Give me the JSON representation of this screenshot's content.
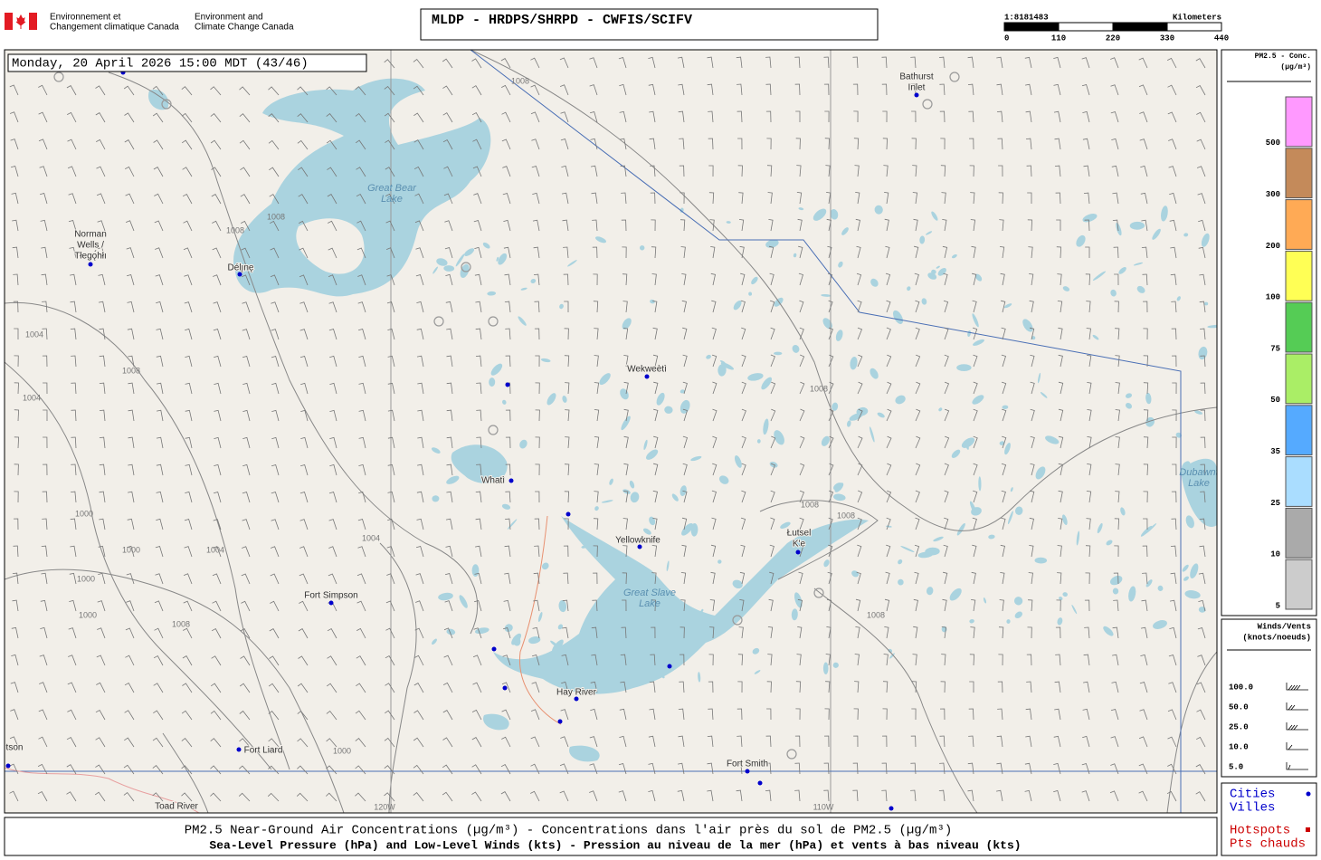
{
  "header": {
    "agency_fr": [
      "Environnement et",
      "Changement climatique Canada"
    ],
    "agency_en": [
      "Environment and",
      "Climate Change Canada"
    ],
    "title": "MLDP - HRDPS/SHRPD - CWFIS/SCIFV",
    "scale": {
      "ratio": "1:8181483",
      "unit": "Kilometers",
      "ticks": [
        0,
        110,
        220,
        330,
        440
      ]
    }
  },
  "map": {
    "timestamp": "Monday, 20 April 2026 15:00 MDT (43/46)",
    "places": [
      {
        "lines": [
          "Great Bear",
          "Lake"
        ],
        "kind": "lake"
      },
      {
        "lines": [
          "Norman",
          "Wells /",
          "Tłegǫ́hłı"
        ],
        "kind": "city"
      },
      {
        "lines": [
          "Délı̨nę"
        ],
        "kind": "city"
      },
      {
        "lines": [
          "Bathurst",
          "Inlet"
        ],
        "kind": "city"
      },
      {
        "lines": [
          "Wekweètì"
        ],
        "kind": "city"
      },
      {
        "lines": [
          "Whatì"
        ],
        "kind": "city"
      },
      {
        "lines": [
          "Yellowknife"
        ],
        "kind": "city"
      },
      {
        "lines": [
          "Great Slave",
          "Lake"
        ],
        "kind": "lake"
      },
      {
        "lines": [
          "Łutsel",
          "K'e"
        ],
        "kind": "city"
      },
      {
        "lines": [
          "Fort Simpson"
        ],
        "kind": "city"
      },
      {
        "lines": [
          "Hay River"
        ],
        "kind": "city"
      },
      {
        "lines": [
          "Fort Liard"
        ],
        "kind": "city"
      },
      {
        "lines": [
          "Fort Smith"
        ],
        "kind": "city"
      },
      {
        "lines": [
          "Dubawnt",
          "Lake"
        ],
        "kind": "lake"
      },
      {
        "lines": [
          "Toad River"
        ],
        "kind": "city"
      },
      {
        "lines": [
          "tson"
        ],
        "kind": "city"
      }
    ],
    "isobar_labels": [
      1008,
      1008,
      1008,
      1004,
      1008,
      1004,
      1000,
      1000,
      1004,
      1000,
      1000,
      1008,
      1008,
      1008,
      1008,
      1008,
      1000,
      1004
    ],
    "longitude_labels": [
      "120W",
      "110W"
    ]
  },
  "legend": {
    "pm25": {
      "title": [
        "PM2.5 - Conc.",
        "(µg/m³)"
      ],
      "levels": [
        {
          "value": 500,
          "color": "#ff99ff"
        },
        {
          "value": 300,
          "color": "#c48a5a"
        },
        {
          "value": 200,
          "color": "#ffaa55"
        },
        {
          "value": 100,
          "color": "#ffff55"
        },
        {
          "value": 75,
          "color": "#55cc55"
        },
        {
          "value": 50,
          "color": "#aaee66"
        },
        {
          "value": 35,
          "color": "#55aaff"
        },
        {
          "value": 25,
          "color": "#aaddff"
        },
        {
          "value": 10,
          "color": "#aaaaaa"
        },
        {
          "value": 5,
          "color": "#cccccc"
        }
      ]
    },
    "winds": {
      "title": [
        "Winds/Vents",
        "(knots/noeuds)"
      ],
      "speeds": [
        "100.0",
        "50.0",
        "25.0",
        "10.0",
        "5.0"
      ]
    },
    "layers": [
      {
        "lines": [
          "Cities",
          "Villes"
        ],
        "color": "#0000cc"
      },
      {
        "lines": [
          "Hotspots",
          "Pts chauds"
        ],
        "color": "#cc0000"
      }
    ]
  },
  "footer": [
    "PM2.5 Near-Ground Air Concentrations (µg/m³) - Concentrations dans l'air près du sol de PM2.5 (µg/m³)",
    "Sea-Level Pressure (hPa) and Low-Level Winds (kts) - Pression au niveau de la mer (hPa) et vents à bas niveau (kts)"
  ]
}
